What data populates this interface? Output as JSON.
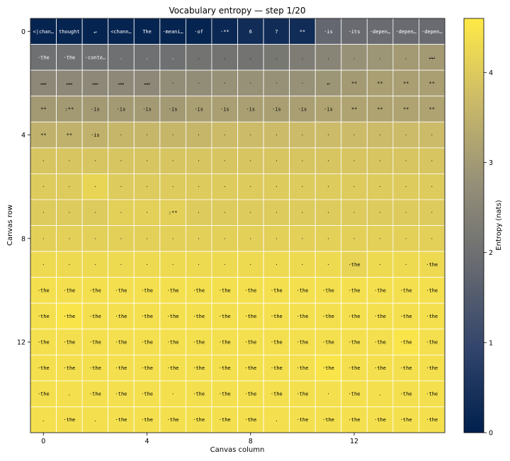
{
  "chart_data": {
    "type": "heatmap",
    "title": "Vocabulary entropy — step 1/20",
    "xlabel": "Canvas column",
    "ylabel": "Canvas row",
    "rows": 16,
    "cols": 16,
    "x_ticks": [
      0,
      4,
      8,
      12
    ],
    "y_ticks": [
      0,
      4,
      8,
      12
    ],
    "colorbar": {
      "label": "Entropy (nats)",
      "colormap": "cividis",
      "range": [
        0,
        4.6
      ],
      "ticks": [
        0,
        1,
        2,
        3,
        4
      ]
    },
    "grid_color": "#ffffff",
    "values": [
      [
        0.1,
        0.1,
        0.1,
        0.1,
        0.1,
        0.1,
        0.1,
        0.2,
        0.3,
        0.3,
        0.3,
        1.8,
        1.9,
        1.9,
        1.9,
        1.9
      ],
      [
        2.0,
        2.0,
        2.0,
        2.0,
        2.0,
        2.0,
        2.1,
        2.1,
        2.1,
        2.2,
        2.3,
        2.5,
        2.8,
        2.9,
        3.0,
        3.0
      ],
      [
        2.6,
        2.6,
        2.6,
        2.6,
        2.6,
        2.7,
        2.7,
        2.8,
        2.8,
        2.8,
        2.8,
        2.9,
        3.0,
        3.1,
        3.1,
        3.1
      ],
      [
        3.0,
        3.0,
        3.0,
        3.0,
        3.0,
        3.0,
        3.1,
        3.1,
        3.1,
        3.1,
        3.1,
        3.2,
        3.2,
        3.2,
        3.2,
        3.2
      ],
      [
        3.5,
        3.5,
        3.5,
        3.6,
        3.6,
        3.6,
        3.6,
        3.7,
        3.7,
        3.7,
        3.7,
        3.7,
        3.7,
        3.7,
        3.7,
        3.7
      ],
      [
        3.9,
        3.9,
        3.9,
        3.9,
        3.9,
        3.9,
        3.9,
        3.9,
        3.9,
        3.9,
        3.9,
        3.9,
        3.9,
        3.9,
        3.9,
        3.9
      ],
      [
        4.0,
        4.0,
        4.2,
        4.0,
        4.0,
        4.0,
        4.0,
        4.0,
        4.0,
        4.0,
        4.0,
        4.0,
        4.0,
        4.0,
        4.0,
        4.0
      ],
      [
        4.0,
        4.0,
        4.0,
        4.1,
        4.1,
        4.1,
        4.0,
        4.0,
        4.0,
        4.0,
        4.0,
        4.0,
        4.0,
        4.0,
        4.0,
        4.0
      ],
      [
        4.1,
        4.1,
        4.1,
        4.1,
        4.1,
        4.1,
        4.1,
        4.1,
        4.1,
        4.1,
        4.1,
        4.1,
        4.1,
        4.1,
        4.1,
        4.1
      ],
      [
        4.3,
        4.3,
        4.3,
        4.3,
        4.3,
        4.3,
        4.3,
        4.3,
        4.3,
        4.3,
        4.3,
        4.3,
        4.2,
        4.3,
        4.3,
        4.3
      ],
      [
        4.4,
        4.4,
        4.4,
        4.4,
        4.4,
        4.4,
        4.4,
        4.4,
        4.4,
        4.4,
        4.4,
        4.4,
        4.4,
        4.4,
        4.4,
        4.4
      ],
      [
        4.4,
        4.5,
        4.4,
        4.4,
        4.4,
        4.4,
        4.4,
        4.4,
        4.4,
        4.4,
        4.4,
        4.4,
        4.4,
        4.4,
        4.4,
        4.4
      ],
      [
        4.4,
        4.4,
        4.4,
        4.4,
        4.4,
        4.4,
        4.4,
        4.4,
        4.4,
        4.4,
        4.4,
        4.4,
        4.4,
        4.4,
        4.5,
        4.4
      ],
      [
        4.4,
        4.4,
        4.4,
        4.4,
        4.4,
        4.4,
        4.4,
        4.4,
        4.4,
        4.4,
        4.4,
        4.5,
        4.4,
        4.4,
        4.4,
        4.4
      ],
      [
        4.4,
        4.4,
        4.4,
        4.4,
        4.4,
        4.4,
        4.4,
        4.4,
        4.4,
        4.4,
        4.4,
        4.4,
        4.4,
        4.4,
        4.4,
        4.4
      ],
      [
        4.4,
        4.4,
        4.4,
        4.4,
        4.4,
        4.4,
        4.4,
        4.4,
        4.4,
        4.4,
        4.4,
        4.4,
        4.4,
        4.4,
        4.4,
        4.4
      ]
    ],
    "tokens": [
      [
        "<|chan…",
        "thought",
        "↵",
        "<chann…",
        "The",
        "·meani…",
        "·of",
        "·**",
        "6",
        "7",
        "**",
        "·is",
        "·its",
        "·depen…",
        "·depen…",
        "·depen…"
      ],
      [
        "·the",
        "·the",
        "·conte…",
        ".",
        ".",
        ".",
        ".",
        ".",
        ".",
        ".",
        ".",
        ".",
        ".",
        ".",
        ".",
        "↵↵"
      ],
      [
        "↵↵",
        "↵↵",
        "↵↵",
        "↵↵",
        "↵↵",
        "·",
        "·",
        "·",
        "·",
        "·",
        "·",
        "↵",
        "**",
        "**",
        "**",
        "**"
      ],
      [
        "**",
        ":**",
        "·is",
        "·is",
        "·is",
        "·is",
        "·is",
        "·is",
        "·is",
        "·is",
        "·is",
        "·is",
        "**",
        "**",
        "**",
        "**"
      ],
      [
        "**",
        "**",
        "·is",
        "·",
        "·",
        "·",
        "·",
        "·",
        "·",
        "·",
        "·",
        "·",
        "·",
        "·",
        "·",
        "·"
      ],
      [
        "·",
        "·",
        "·",
        "·",
        "·",
        "·",
        "·",
        "·",
        "·",
        "·",
        "·",
        "·",
        "·",
        "·",
        "·",
        "·"
      ],
      [
        "·",
        "·",
        "·",
        "·",
        "·",
        "·",
        "·",
        "·",
        "·",
        "·",
        "·",
        "·",
        "·",
        "·",
        "·",
        "·"
      ],
      [
        "·",
        "·",
        "·",
        "·",
        "·",
        ":**",
        "·",
        "·",
        "·",
        "·",
        "·",
        "·",
        "·",
        "·",
        "·",
        "·"
      ],
      [
        "·",
        "·",
        "·",
        "·",
        "·",
        "·",
        "·",
        "·",
        "·",
        "·",
        "·",
        "·",
        "·",
        "·",
        "·",
        "·"
      ],
      [
        "·",
        "·",
        "·",
        "·",
        "·",
        "·",
        "·",
        "·",
        "·",
        "·",
        "·",
        "·",
        "·the",
        "·",
        "·",
        "·the"
      ],
      [
        "·the",
        "·the",
        "·the",
        "·the",
        "·the",
        "·the",
        "·the",
        "·the",
        "·the",
        "·the",
        "·the",
        "·the",
        "·the",
        "·the",
        "·the",
        "·the"
      ],
      [
        "·the",
        "·the",
        "·the",
        "·the",
        "·the",
        "·the",
        "·the",
        "·the",
        "·the",
        "·the",
        "·the",
        "·the",
        "·the",
        "·the",
        "·the",
        "·the"
      ],
      [
        "·the",
        "·the",
        "·the",
        "·the",
        "·the",
        "·the",
        "·the",
        "·the",
        "·the",
        "·the",
        "·the",
        "·the",
        "·the",
        "·the",
        "·the",
        "·the"
      ],
      [
        "·the",
        "·the",
        "·the",
        "·the",
        "·the",
        "·the",
        "·the",
        "·the",
        "·the",
        "·the",
        "·the",
        "·the",
        "·the",
        "·the",
        "·the",
        "·the"
      ],
      [
        "·the",
        ".",
        "·the",
        "·the",
        "·the",
        "·",
        "·the",
        "·the",
        "·the",
        "·the",
        "·the",
        "·",
        "·the",
        ".",
        "·the",
        "·the"
      ],
      [
        ".",
        "·the",
        ".",
        "·the",
        "·the",
        "·the",
        "·the",
        "·the",
        "·the",
        ".",
        "·the",
        "·the",
        "·the",
        "·the",
        "·the",
        "·the"
      ]
    ]
  }
}
